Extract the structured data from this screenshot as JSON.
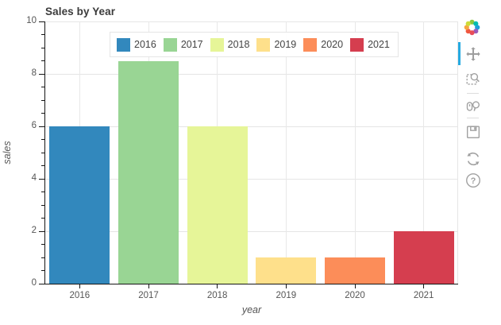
{
  "chart_data": {
    "type": "bar",
    "title": "Sales by Year",
    "categories": [
      "2016",
      "2017",
      "2018",
      "2019",
      "2020",
      "2021"
    ],
    "values": [
      6,
      8.5,
      6,
      1,
      1,
      2
    ],
    "colors": [
      "#3288bd",
      "#99d594",
      "#e6f598",
      "#fee08b",
      "#fc8d59",
      "#d53e4f"
    ],
    "xlabel": "year",
    "ylabel": "sales",
    "ylim": [
      0,
      10
    ],
    "yticks": [
      0,
      2,
      4,
      6,
      8,
      10
    ],
    "minor_tick_step": 0.5,
    "grid": "on",
    "legend_position": "top-center",
    "legend_entries": [
      "2016",
      "2017",
      "2018",
      "2019",
      "2020",
      "2021"
    ]
  },
  "toolbar": {
    "logo_icon": "bokeh-logo",
    "active_tool_color": "#26aae1",
    "tools": [
      {
        "name": "pan",
        "icon": "pan-icon",
        "active": true
      },
      {
        "name": "box-zoom",
        "icon": "box-zoom-icon",
        "active": false
      },
      {
        "name": "wheel-zoom",
        "icon": "wheel-zoom-icon",
        "active": false
      },
      {
        "name": "save",
        "icon": "save-icon",
        "active": false
      },
      {
        "name": "reset",
        "icon": "reset-icon",
        "active": false
      },
      {
        "name": "help",
        "icon": "help-icon",
        "active": false
      }
    ]
  },
  "colors": {
    "grid": "#e5e5e5",
    "axis": "#161616",
    "title_text": "#3b3b3b",
    "tick_label": "#555555",
    "toolbar_icon": "#a0a0a0"
  }
}
